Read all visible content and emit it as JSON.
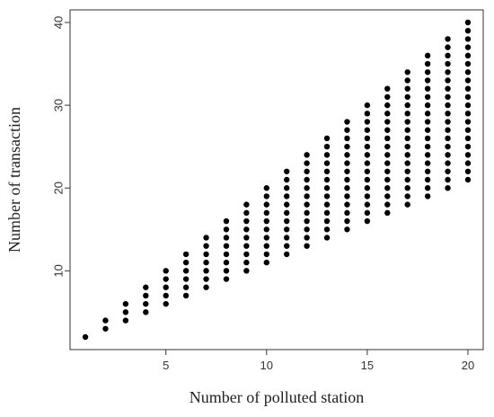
{
  "chart_data": {
    "type": "scatter",
    "x_label": "Number of polluted station",
    "y_label": "Number of transaction",
    "color": "#000000",
    "xlim": [
      0.24,
      20.76
    ],
    "ylim": [
      0.48,
      41.52
    ],
    "xticks": [
      5,
      10,
      15,
      20
    ],
    "yticks": [
      10,
      20,
      30,
      40
    ],
    "x": [
      1,
      2,
      2,
      3,
      3,
      3,
      4,
      4,
      4,
      4,
      5,
      5,
      5,
      5,
      5,
      6,
      6,
      6,
      6,
      6,
      6,
      7,
      7,
      7,
      7,
      7,
      7,
      7,
      8,
      8,
      8,
      8,
      8,
      8,
      8,
      8,
      9,
      9,
      9,
      9,
      9,
      9,
      9,
      9,
      9,
      10,
      10,
      10,
      10,
      10,
      10,
      10,
      10,
      10,
      10,
      11,
      11,
      11,
      11,
      11,
      11,
      11,
      11,
      11,
      11,
      11,
      12,
      12,
      12,
      12,
      12,
      12,
      12,
      12,
      12,
      12,
      12,
      12,
      13,
      13,
      13,
      13,
      13,
      13,
      13,
      13,
      13,
      13,
      13,
      13,
      13,
      14,
      14,
      14,
      14,
      14,
      14,
      14,
      14,
      14,
      14,
      14,
      14,
      14,
      14,
      15,
      15,
      15,
      15,
      15,
      15,
      15,
      15,
      15,
      15,
      15,
      15,
      15,
      15,
      15,
      16,
      16,
      16,
      16,
      16,
      16,
      16,
      16,
      16,
      16,
      16,
      16,
      16,
      16,
      16,
      16,
      17,
      17,
      17,
      17,
      17,
      17,
      17,
      17,
      17,
      17,
      17,
      17,
      17,
      17,
      17,
      17,
      17,
      18,
      18,
      18,
      18,
      18,
      18,
      18,
      18,
      18,
      18,
      18,
      18,
      18,
      18,
      18,
      18,
      18,
      18,
      19,
      19,
      19,
      19,
      19,
      19,
      19,
      19,
      19,
      19,
      19,
      19,
      19,
      19,
      19,
      19,
      19,
      19,
      19,
      20,
      20,
      20,
      20,
      20,
      20,
      20,
      20,
      20,
      20,
      20,
      20,
      20,
      20,
      20,
      20,
      20,
      20,
      20,
      20
    ],
    "y": [
      2,
      3,
      4,
      4,
      5,
      6,
      5,
      6,
      7,
      8,
      6,
      7,
      8,
      9,
      10,
      7,
      8,
      9,
      10,
      11,
      12,
      8,
      9,
      10,
      11,
      12,
      13,
      14,
      9,
      10,
      11,
      12,
      13,
      14,
      15,
      16,
      10,
      11,
      12,
      13,
      14,
      15,
      16,
      17,
      18,
      11,
      12,
      13,
      14,
      15,
      16,
      17,
      18,
      19,
      20,
      12,
      13,
      14,
      15,
      16,
      17,
      18,
      19,
      20,
      21,
      22,
      13,
      14,
      15,
      16,
      17,
      18,
      19,
      20,
      21,
      22,
      23,
      24,
      14,
      15,
      16,
      17,
      18,
      19,
      20,
      21,
      22,
      23,
      24,
      25,
      26,
      15,
      16,
      17,
      18,
      19,
      20,
      21,
      22,
      23,
      24,
      25,
      26,
      27,
      28,
      16,
      17,
      18,
      19,
      20,
      21,
      22,
      23,
      24,
      25,
      26,
      27,
      28,
      29,
      30,
      17,
      18,
      19,
      20,
      21,
      22,
      23,
      24,
      25,
      26,
      27,
      28,
      29,
      30,
      31,
      32,
      18,
      19,
      20,
      21,
      22,
      23,
      24,
      25,
      26,
      27,
      28,
      29,
      30,
      31,
      32,
      33,
      34,
      19,
      20,
      21,
      22,
      23,
      24,
      25,
      26,
      27,
      28,
      29,
      30,
      31,
      32,
      33,
      34,
      35,
      36,
      20,
      21,
      22,
      23,
      24,
      25,
      26,
      27,
      28,
      29,
      30,
      31,
      32,
      33,
      34,
      35,
      36,
      37,
      38,
      21,
      22,
      23,
      24,
      25,
      26,
      27,
      28,
      29,
      30,
      31,
      32,
      33,
      34,
      35,
      36,
      37,
      38,
      39,
      40
    ]
  }
}
